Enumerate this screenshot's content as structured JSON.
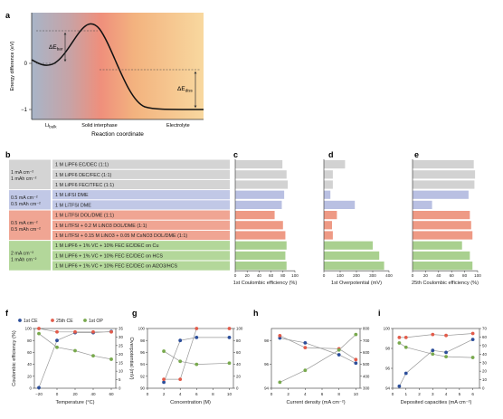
{
  "colors": {
    "gray": "#d4d4d4",
    "blue": "#c1c8e6",
    "orange": "#f0a593",
    "green": "#b3d79a",
    "bar_gray": "#d2d2d2",
    "bar_blue": "#b9c0e2",
    "bar_orange": "#ee9a85",
    "bar_green": "#a9d08f",
    "s_blue": "#2c4e9a",
    "s_red": "#e25b4a",
    "s_green": "#78a94d"
  },
  "panel_a": {
    "letter": "a",
    "ylabel": "Energy difference (eV)",
    "xlabel": "Reaction coordinate",
    "ticks": [
      "0",
      "−1"
    ],
    "regions": [
      {
        "main": "Li",
        "sub": "bulk"
      },
      {
        "main": "Solid interphase",
        "sub": ""
      },
      {
        "main": "Electrolyte",
        "sub": ""
      }
    ],
    "barrier_label": {
      "main": "ΔE",
      "sub": "bar"
    },
    "diss_label": {
      "main": "ΔE",
      "sub": "diss"
    }
  },
  "panel_b": {
    "letter": "b",
    "groups": [
      {
        "color": "gray",
        "cond": [
          "1 mA cm⁻²",
          "1 mAh cm⁻²"
        ],
        "rows": [
          "1 M LiPF6 EC/DEC (1:1)",
          "1 M LiPF6 DEC/FEC (1:1)",
          "1 M LiPF6 FEC/TFEC (1:1)"
        ]
      },
      {
        "color": "blue",
        "cond": [
          "0.5 mA cm⁻²",
          "0.5 mAh cm⁻²"
        ],
        "rows": [
          "1 M LiFSI DME",
          "1 M LiTFSI DME"
        ]
      },
      {
        "color": "orange",
        "cond": [
          "0.5 mA cm⁻²",
          "0.5 mAh cm⁻²"
        ],
        "rows": [
          "1 M LiTFSI DOL/DME (1:1)",
          "1 M LiTFSI + 0.2 M LiNO3 DOL/DME (1:1)",
          "1 M LiTFSI + 0.15 M LiNO3 + 0.05 M CsNO3 DOL/DME (1:1)"
        ]
      },
      {
        "color": "green",
        "cond": [
          "2 mA cm⁻²",
          "1 mAh cm⁻²"
        ],
        "rows": [
          "1 M LiPF6 + 1% VC + 10% FEC EC/DEC on Cu",
          "1 M LiPF6 + 1% VC + 10% FEC EC/DEC on HCS",
          "1 M LiPF6 + 1% VC + 10% FEC EC/DEC on Al2O3/HCS"
        ]
      }
    ]
  },
  "chart_data": [
    {
      "type": "bar",
      "letter": "c",
      "xlabel": "1st Coulombic efficiency (%)",
      "xlim": [
        0,
        100
      ],
      "ticks": [
        "0",
        "20",
        "40",
        "60",
        "80",
        "100"
      ],
      "values": [
        79,
        86,
        88,
        82,
        78,
        66,
        80,
        84,
        86,
        84,
        86
      ]
    },
    {
      "type": "bar",
      "letter": "d",
      "xlabel": "1st Overpotential (mV)",
      "xlim": [
        0,
        400
      ],
      "ticks": [
        "0",
        "100",
        "200",
        "300",
        "400"
      ],
      "values": [
        130,
        55,
        55,
        40,
        190,
        80,
        50,
        55,
        300,
        340,
        370
      ]
    },
    {
      "type": "bar",
      "letter": "e",
      "xlabel": "25th Coulombic efficiency (%)",
      "xlim": [
        0,
        100
      ],
      "ticks": [
        "0",
        "20",
        "40",
        "60",
        "80",
        "100"
      ],
      "values": [
        94,
        96,
        95,
        86,
        30,
        88,
        90,
        92,
        76,
        88,
        92
      ]
    },
    {
      "type": "line",
      "letter": "f",
      "xlabel": "Temperature (°C)",
      "ylabel": "Coulombic efficiency (%)",
      "y2label": "Overpotential (mV)",
      "legend": [
        "1st CE",
        "25th CE",
        "1st OP"
      ],
      "legend_loc": "top",
      "x": [
        -20,
        0,
        20,
        40,
        60
      ],
      "xlim": [
        -25,
        65
      ],
      "xticks": [
        "−20",
        "0",
        "20",
        "40",
        "60"
      ],
      "ylim": [
        0,
        100
      ],
      "yticks": [
        "0",
        "20",
        "40",
        "60",
        "80",
        "100"
      ],
      "y2lim": [
        0,
        35
      ],
      "y2ticks": [
        "0",
        "5",
        "10",
        "15",
        "20",
        "25",
        "30",
        "35"
      ],
      "series": [
        {
          "name": "1st CE",
          "axis": "left",
          "color": "s_blue",
          "values": [
            1,
            80,
            93,
            93,
            95
          ]
        },
        {
          "name": "25th CE",
          "axis": "right",
          "color": "s_red",
          "values": [
            35,
            33,
            33,
            33,
            33
          ]
        },
        {
          "name": "1st OP",
          "axis": "right",
          "color": "s_green",
          "values": [
            32,
            24,
            22,
            19,
            17
          ]
        }
      ]
    },
    {
      "type": "line",
      "letter": "g",
      "xlabel": "Concentration (M)",
      "x": [
        2,
        4,
        6,
        10
      ],
      "xlim": [
        0,
        10.5
      ],
      "xticks": [
        "0",
        "2",
        "4",
        "6",
        "8",
        "10"
      ],
      "ylim": [
        90,
        100
      ],
      "yticks": [
        "90",
        "92",
        "94",
        "96",
        "98",
        "100"
      ],
      "y2lim": [
        0,
        100
      ],
      "y2ticks": [
        "0",
        "20",
        "40",
        "60",
        "80",
        "100"
      ],
      "series": [
        {
          "name": "1st CE",
          "axis": "left",
          "color": "s_blue",
          "values": [
            91,
            98,
            98.5,
            98.5
          ]
        },
        {
          "name": "25th CE",
          "axis": "left",
          "color": "s_red",
          "values": [
            91.5,
            91.5,
            100,
            100
          ]
        },
        {
          "name": "1st OP",
          "axis": "right",
          "color": "s_green",
          "values": [
            62,
            45,
            40,
            42
          ]
        }
      ]
    },
    {
      "type": "line",
      "letter": "h",
      "xlabel": "Current density (mA cm⁻²)",
      "x": [
        1,
        4,
        8,
        10
      ],
      "xlim": [
        0,
        10.5
      ],
      "xticks": [
        "0",
        "2",
        "4",
        "6",
        "8",
        "10"
      ],
      "ylim": [
        94,
        99
      ],
      "yticks": [
        "94",
        "96",
        "98"
      ],
      "y2lim": [
        300,
        800
      ],
      "y2ticks": [
        "300",
        "400",
        "500",
        "600",
        "700",
        "800"
      ],
      "series": [
        {
          "name": "1st CE",
          "axis": "left",
          "color": "s_blue",
          "values": [
            98.2,
            97.8,
            96.8,
            96.1
          ]
        },
        {
          "name": "25th CE",
          "axis": "left",
          "color": "s_red",
          "values": [
            98.4,
            97.4,
            97.3,
            96.4
          ]
        },
        {
          "name": "1st OP",
          "axis": "right",
          "color": "s_green",
          "values": [
            350,
            450,
            620,
            750
          ]
        }
      ]
    },
    {
      "type": "line",
      "letter": "i",
      "xlabel": "Deposited capacities (mA cm⁻²)",
      "x": [
        0.5,
        1,
        3,
        4,
        6
      ],
      "xlim": [
        0,
        6.5
      ],
      "xticks": [
        "0",
        "1",
        "2",
        "3",
        "4",
        "5",
        "6"
      ],
      "ylim": [
        94,
        100
      ],
      "yticks": [
        "94",
        "96",
        "98",
        "100"
      ],
      "y2lim": [
        0,
        70
      ],
      "y2ticks": [
        "0",
        "10",
        "20",
        "30",
        "40",
        "50",
        "60",
        "70"
      ],
      "series": [
        {
          "name": "1st CE",
          "axis": "left",
          "color": "s_blue",
          "values": [
            94.2,
            95.5,
            97.8,
            97.6,
            98.9
          ]
        },
        {
          "name": "25th CE",
          "axis": "left",
          "color": "s_red",
          "values": [
            99.1,
            99.1,
            99.4,
            99.3,
            99.5
          ]
        },
        {
          "name": "1st OP",
          "axis": "right",
          "color": "s_green",
          "values": [
            53,
            48,
            40,
            37,
            36
          ]
        }
      ]
    }
  ]
}
